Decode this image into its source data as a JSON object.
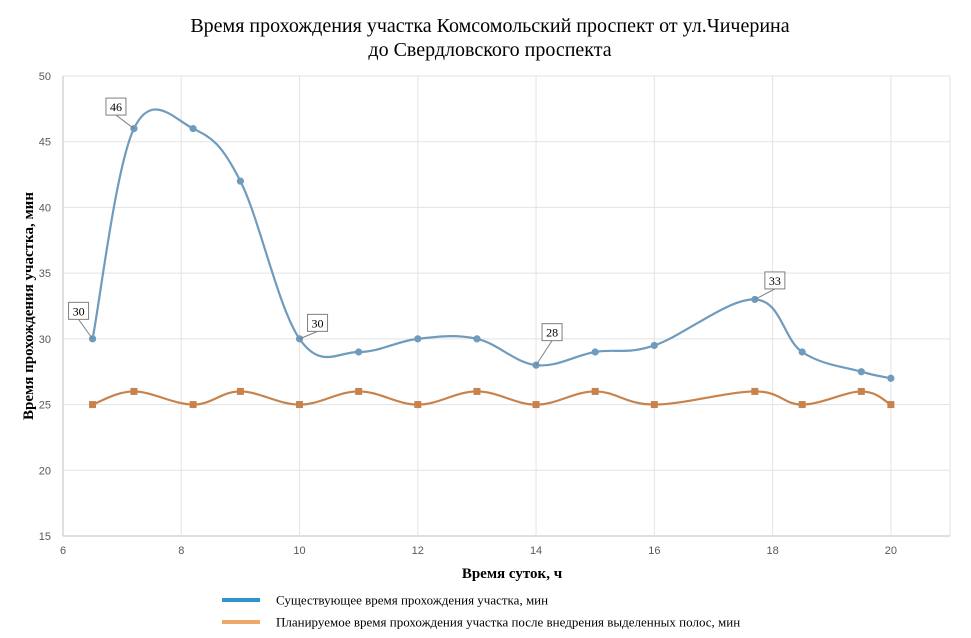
{
  "chart_data": {
    "type": "line",
    "title": [
      "Время прохождения  участка  Комсомольский  проспект  от ул.Чичерина",
      "до Свердловского проспекта"
    ],
    "xlabel": "Время суток, ч",
    "ylabel": "Время прохождения участка, мин",
    "xlim": [
      6,
      21
    ],
    "ylim": [
      15,
      50
    ],
    "x_ticks": [
      6,
      8,
      10,
      12,
      14,
      16,
      18,
      20
    ],
    "y_ticks": [
      15,
      20,
      25,
      30,
      35,
      40,
      45,
      50
    ],
    "grid": true,
    "legend_position": "bottom",
    "series": [
      {
        "name": "Существующее  время прохождения  участка, мин",
        "color": "#6f9bbd",
        "legend_color": "#2e95cf",
        "marker": "circle",
        "x": [
          6.5,
          7.2,
          8.2,
          9,
          10,
          11,
          12,
          13,
          14,
          15,
          16,
          17.7,
          18.5,
          19.5,
          20
        ],
        "y": [
          30,
          46,
          46,
          42,
          30,
          29,
          30,
          30,
          28,
          29,
          29.5,
          33,
          29,
          27.5,
          27
        ]
      },
      {
        "name": "Планируемое время прохождения  участка после  внедрения  выделенных  полос, мин",
        "color": "#c8824b",
        "legend_color": "#eda86a",
        "marker": "square",
        "x": [
          6.5,
          7.2,
          8.2,
          9,
          10,
          11,
          12,
          13,
          14,
          15,
          16,
          17.7,
          18.5,
          19.5,
          20
        ],
        "y": [
          25,
          26,
          25,
          26,
          25,
          26,
          25,
          26,
          25,
          26,
          25,
          26,
          25,
          26,
          25
        ]
      }
    ],
    "annotations": [
      {
        "text": "30",
        "x": 6.5,
        "y": 30
      },
      {
        "text": "46",
        "x": 7.2,
        "y": 46
      },
      {
        "text": "30",
        "x": 10,
        "y": 30
      },
      {
        "text": "28",
        "x": 14,
        "y": 28
      },
      {
        "text": "33",
        "x": 17.7,
        "y": 33
      }
    ]
  }
}
